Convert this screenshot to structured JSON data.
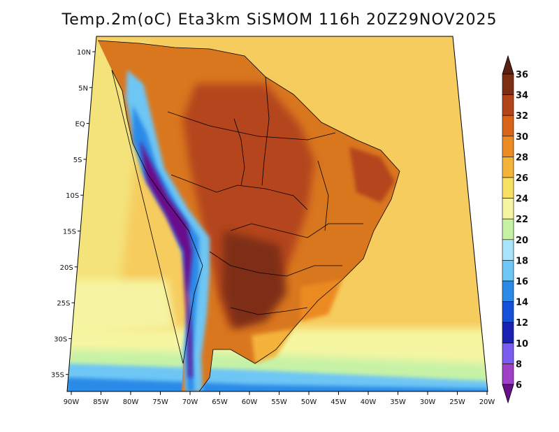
{
  "title": {
    "variable": "Temp.2m(oC)",
    "model": "Eta3km",
    "system": "SiSMOM",
    "forecast_hour": "116h",
    "valid_time": "20Z29NOV2025",
    "text": "Temp.2m(oC) Eta3km SiSMOM 116h 20Z29NOV2025"
  },
  "lat_labels": [
    "10N",
    "5N",
    "EQ",
    "5S",
    "10S",
    "15S",
    "20S",
    "25S",
    "30S",
    "35S"
  ],
  "lon_labels": [
    "90W",
    "85W",
    "80W",
    "75W",
    "70W",
    "65W",
    "60W",
    "55W",
    "50W",
    "45W",
    "40W",
    "35W",
    "30W",
    "25W",
    "20W"
  ],
  "colorbar": {
    "levels": [
      6,
      8,
      10,
      12,
      14,
      16,
      18,
      20,
      22,
      24,
      26,
      28,
      30,
      32,
      34,
      36
    ],
    "labels": [
      "6",
      "8",
      "10",
      "12",
      "14",
      "16",
      "18",
      "20",
      "22",
      "24",
      "26",
      "28",
      "30",
      "32",
      "34",
      "36"
    ],
    "colors": [
      "#6a0f8c",
      "#a040c8",
      "#7a5cf0",
      "#1a22b4",
      "#1450d8",
      "#2a8ae8",
      "#6ec6f4",
      "#a8e4fc",
      "#c6f2a6",
      "#f6f6a2",
      "#f8e062",
      "#f4b43a",
      "#ec8a24",
      "#d8641a",
      "#b4441a",
      "#7e2e12",
      "#5a2010"
    ]
  },
  "map": {
    "ocean_color": "#f6cc5e",
    "land_color": "#d9771f"
  }
}
